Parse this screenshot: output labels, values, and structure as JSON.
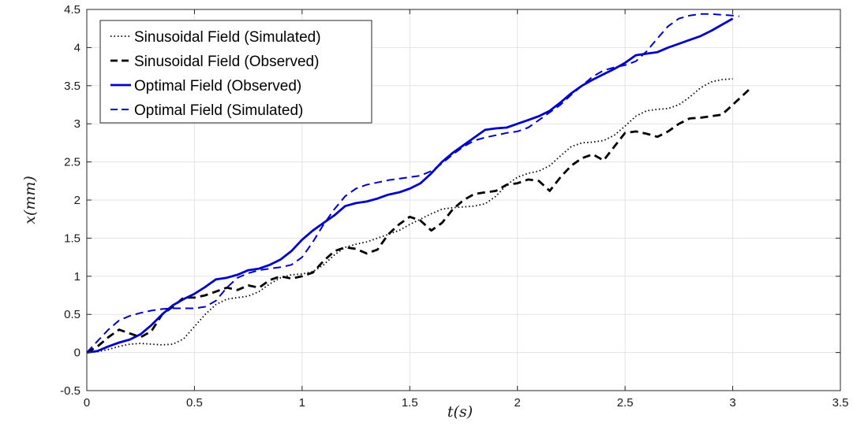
{
  "chart_data": {
    "type": "line",
    "xlabel": "t(s)",
    "ylabel": "x(mm)",
    "xlim": [
      0,
      3.5
    ],
    "ylim": [
      -0.5,
      4.5
    ],
    "xticks": [
      0,
      0.5,
      1,
      1.5,
      2,
      2.5,
      3,
      3.5
    ],
    "yticks": [
      -0.5,
      0,
      0.5,
      1,
      1.5,
      2,
      2.5,
      3,
      3.5,
      4,
      4.5
    ],
    "xtick_labels": [
      "0",
      "0.5",
      "1",
      "1.5",
      "2",
      "2.5",
      "3",
      "3.5"
    ],
    "ytick_labels": [
      "-0.5",
      "0",
      "0.5",
      "1",
      "1.5",
      "2",
      "2.5",
      "3",
      "3.5",
      "4",
      "4.5"
    ],
    "grid": true,
    "legend_position": "top-left",
    "series": [
      {
        "name": "Sinusoidal Field (Simulated)",
        "color": "#000000",
        "style": "dotted",
        "x": [
          0,
          0.05,
          0.1,
          0.15,
          0.2,
          0.25,
          0.3,
          0.35,
          0.4,
          0.45,
          0.5,
          0.55,
          0.6,
          0.65,
          0.7,
          0.75,
          0.8,
          0.85,
          0.9,
          0.95,
          1.0,
          1.05,
          1.1,
          1.15,
          1.2,
          1.25,
          1.3,
          1.35,
          1.4,
          1.45,
          1.5,
          1.55,
          1.6,
          1.65,
          1.7,
          1.75,
          1.8,
          1.85,
          1.9,
          1.95,
          2.0,
          2.05,
          2.1,
          2.15,
          2.2,
          2.25,
          2.3,
          2.35,
          2.4,
          2.45,
          2.5,
          2.55,
          2.6,
          2.65,
          2.7,
          2.75,
          2.8,
          2.85,
          2.9,
          2.95,
          3.0
        ],
        "y": [
          0,
          0.01,
          0.04,
          0.08,
          0.11,
          0.12,
          0.11,
          0.1,
          0.11,
          0.18,
          0.34,
          0.5,
          0.63,
          0.7,
          0.72,
          0.74,
          0.8,
          0.9,
          0.98,
          1.02,
          1.03,
          1.06,
          1.15,
          1.28,
          1.38,
          1.42,
          1.45,
          1.5,
          1.55,
          1.6,
          1.68,
          1.75,
          1.82,
          1.88,
          1.9,
          1.91,
          1.92,
          1.95,
          2.05,
          2.2,
          2.3,
          2.35,
          2.38,
          2.45,
          2.58,
          2.7,
          2.75,
          2.76,
          2.78,
          2.85,
          2.97,
          3.1,
          3.17,
          3.19,
          3.2,
          3.25,
          3.35,
          3.47,
          3.55,
          3.58,
          3.59
        ]
      },
      {
        "name": "Sinusoidal Field (Observed)",
        "color": "#000000",
        "style": "dashed",
        "x": [
          0,
          0.05,
          0.1,
          0.15,
          0.2,
          0.25,
          0.3,
          0.35,
          0.4,
          0.45,
          0.5,
          0.55,
          0.6,
          0.65,
          0.7,
          0.75,
          0.8,
          0.85,
          0.9,
          0.95,
          1.0,
          1.05,
          1.1,
          1.15,
          1.2,
          1.25,
          1.3,
          1.35,
          1.4,
          1.45,
          1.5,
          1.55,
          1.6,
          1.65,
          1.7,
          1.75,
          1.8,
          1.85,
          1.9,
          1.95,
          2.0,
          2.05,
          2.1,
          2.15,
          2.2,
          2.25,
          2.3,
          2.35,
          2.4,
          2.45,
          2.5,
          2.55,
          2.6,
          2.65,
          2.7,
          2.75,
          2.8,
          2.85,
          2.9,
          2.95,
          3.0,
          3.05,
          3.08
        ],
        "y": [
          0,
          0.08,
          0.2,
          0.3,
          0.25,
          0.2,
          0.28,
          0.5,
          0.6,
          0.72,
          0.72,
          0.75,
          0.8,
          0.85,
          0.82,
          0.88,
          0.85,
          0.95,
          1.0,
          0.97,
          1.0,
          1.05,
          1.2,
          1.33,
          1.38,
          1.36,
          1.3,
          1.35,
          1.55,
          1.68,
          1.78,
          1.73,
          1.6,
          1.7,
          1.88,
          2.0,
          2.08,
          2.1,
          2.12,
          2.2,
          2.22,
          2.27,
          2.25,
          2.12,
          2.3,
          2.45,
          2.55,
          2.6,
          2.52,
          2.7,
          2.88,
          2.9,
          2.87,
          2.83,
          2.9,
          3.0,
          3.07,
          3.08,
          3.1,
          3.12,
          3.25,
          3.38,
          3.46
        ]
      },
      {
        "name": "Optimal Field (Observed)",
        "color": "#0000cc",
        "style": "solid",
        "x": [
          0,
          0.05,
          0.1,
          0.15,
          0.2,
          0.25,
          0.3,
          0.35,
          0.4,
          0.45,
          0.5,
          0.55,
          0.6,
          0.65,
          0.7,
          0.75,
          0.8,
          0.85,
          0.9,
          0.95,
          1.0,
          1.05,
          1.1,
          1.15,
          1.2,
          1.25,
          1.3,
          1.35,
          1.4,
          1.45,
          1.5,
          1.55,
          1.6,
          1.65,
          1.7,
          1.75,
          1.8,
          1.85,
          1.9,
          1.95,
          2.0,
          2.05,
          2.1,
          2.15,
          2.2,
          2.25,
          2.3,
          2.35,
          2.4,
          2.45,
          2.5,
          2.55,
          2.6,
          2.65,
          2.7,
          2.75,
          2.8,
          2.85,
          2.9,
          2.95,
          3.0
        ],
        "y": [
          0,
          0.02,
          0.08,
          0.13,
          0.17,
          0.24,
          0.36,
          0.5,
          0.62,
          0.7,
          0.77,
          0.86,
          0.96,
          0.98,
          1.02,
          1.08,
          1.1,
          1.15,
          1.22,
          1.33,
          1.48,
          1.6,
          1.7,
          1.8,
          1.92,
          1.96,
          1.98,
          2.02,
          2.07,
          2.1,
          2.15,
          2.22,
          2.35,
          2.5,
          2.62,
          2.72,
          2.82,
          2.92,
          2.94,
          2.95,
          3.0,
          3.05,
          3.1,
          3.17,
          3.28,
          3.4,
          3.5,
          3.58,
          3.65,
          3.72,
          3.8,
          3.9,
          3.92,
          3.94,
          4.0,
          4.05,
          4.1,
          4.15,
          4.22,
          4.3,
          4.38
        ]
      },
      {
        "name": "Optimal Field (Simulated)",
        "color": "#0000cc",
        "style": "dashed",
        "x": [
          0,
          0.05,
          0.1,
          0.15,
          0.2,
          0.25,
          0.3,
          0.35,
          0.4,
          0.45,
          0.5,
          0.55,
          0.6,
          0.65,
          0.7,
          0.75,
          0.8,
          0.85,
          0.9,
          0.95,
          1.0,
          1.05,
          1.1,
          1.15,
          1.2,
          1.25,
          1.3,
          1.35,
          1.4,
          1.45,
          1.5,
          1.55,
          1.6,
          1.65,
          1.7,
          1.75,
          1.8,
          1.85,
          1.9,
          1.95,
          2.0,
          2.05,
          2.1,
          2.15,
          2.2,
          2.25,
          2.3,
          2.35,
          2.4,
          2.45,
          2.5,
          2.55,
          2.6,
          2.65,
          2.7,
          2.75,
          2.8,
          2.85,
          2.9,
          2.95,
          3.0,
          3.03
        ],
        "y": [
          0,
          0.15,
          0.3,
          0.42,
          0.48,
          0.52,
          0.55,
          0.57,
          0.58,
          0.58,
          0.58,
          0.6,
          0.68,
          0.85,
          0.98,
          1.04,
          1.08,
          1.1,
          1.12,
          1.15,
          1.25,
          1.45,
          1.68,
          1.88,
          2.05,
          2.15,
          2.2,
          2.23,
          2.26,
          2.28,
          2.3,
          2.32,
          2.38,
          2.48,
          2.6,
          2.7,
          2.78,
          2.82,
          2.85,
          2.88,
          2.9,
          2.95,
          3.05,
          3.15,
          3.25,
          3.38,
          3.5,
          3.62,
          3.7,
          3.74,
          3.77,
          3.82,
          3.95,
          4.12,
          4.28,
          4.38,
          4.42,
          4.44,
          4.44,
          4.43,
          4.42,
          4.41
        ]
      }
    ]
  }
}
